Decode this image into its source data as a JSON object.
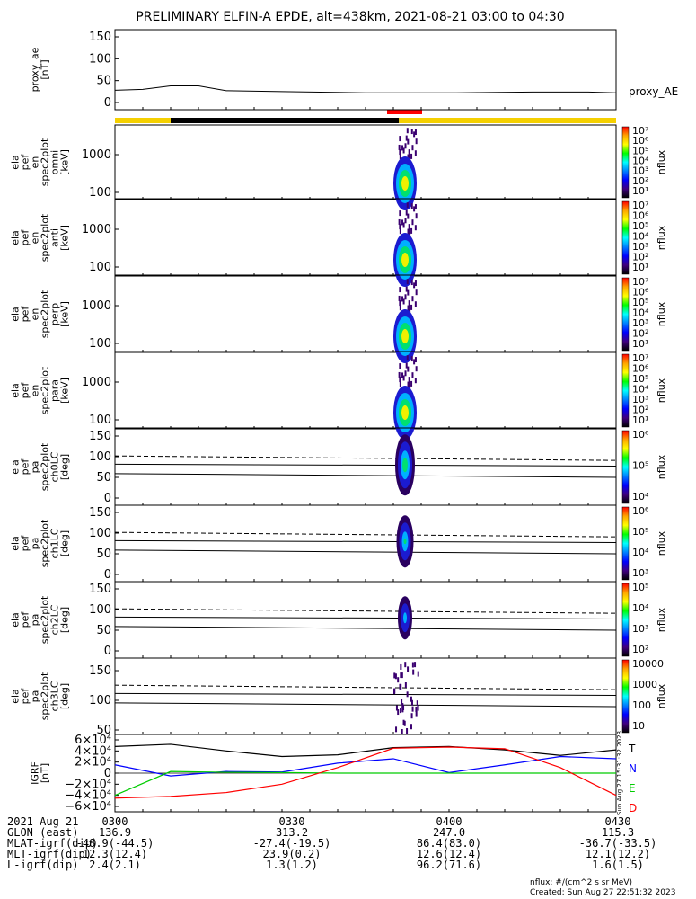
{
  "title": "PRELIMINARY ELFIN-A EPDE, alt=438km, 2021-08-21 03:00 to 04:30",
  "panels": [
    {
      "id": "ae",
      "ylabel": [
        "proxy_ae",
        "[nT]"
      ],
      "side_label": "proxy_AE",
      "yticks": [
        "150",
        "100",
        "50",
        "0"
      ]
    },
    {
      "id": "omni",
      "ylabel": [
        "ela",
        "pef",
        "en",
        "spec2plot",
        "omni",
        "[keV]"
      ],
      "yticks": [
        "1000",
        "100"
      ],
      "cbar_label": "nflux"
    },
    {
      "id": "anti",
      "ylabel": [
        "ela",
        "pef",
        "en",
        "spec2plot",
        "anti",
        "[keV]"
      ],
      "yticks": [
        "1000",
        "100"
      ],
      "cbar_label": "nflux"
    },
    {
      "id": "perp",
      "ylabel": [
        "ela",
        "pef",
        "en",
        "spec2plot",
        "perp",
        "[keV]"
      ],
      "yticks": [
        "1000",
        "100"
      ],
      "cbar_label": "nflux"
    },
    {
      "id": "para",
      "ylabel": [
        "ela",
        "pef",
        "en",
        "spec2plot",
        "para",
        "[keV]"
      ],
      "yticks": [
        "1000",
        "100"
      ],
      "cbar_label": "nflux"
    },
    {
      "id": "ch0",
      "ylabel": [
        "ela",
        "pef",
        "pa",
        "spec2plot",
        "ch0LC",
        "[deg]"
      ],
      "yticks": [
        "150",
        "100",
        "50",
        "0"
      ],
      "cbar_label": "nflux"
    },
    {
      "id": "ch1",
      "ylabel": [
        "ela",
        "pef",
        "pa",
        "spec2plot",
        "ch1LC",
        "[deg]"
      ],
      "yticks": [
        "150",
        "100",
        "50",
        "0"
      ],
      "cbar_label": "nflux"
    },
    {
      "id": "ch2",
      "ylabel": [
        "ela",
        "pef",
        "pa",
        "spec2plot",
        "ch2LC",
        "[deg]"
      ],
      "yticks": [
        "150",
        "100",
        "50",
        "0"
      ],
      "cbar_label": "nflux"
    },
    {
      "id": "ch3",
      "ylabel": [
        "ela",
        "pef",
        "pa",
        "spec2plot",
        "ch3LC",
        "[deg]"
      ],
      "yticks": [
        "150",
        "100",
        "50"
      ],
      "cbar_label": "nflux"
    },
    {
      "id": "igrf",
      "ylabel": [
        "IGRF",
        "[nT]"
      ],
      "yticks": [
        "6×10⁴",
        "4×10⁴",
        "2×10⁴",
        "0",
        "−2×10⁴",
        "−4×10⁴",
        "−6×10⁴"
      ]
    }
  ],
  "colorbars": [
    {
      "labels": [
        "10⁷",
        "10⁶",
        "10⁵",
        "10⁴",
        "10³",
        "10²",
        "10¹"
      ]
    },
    {
      "labels": [
        "10⁷",
        "10⁶",
        "10⁵",
        "10⁴",
        "10³",
        "10²",
        "10¹"
      ]
    },
    {
      "labels": [
        "10⁷",
        "10⁶",
        "10⁵",
        "10⁴",
        "10³",
        "10²",
        "10¹"
      ]
    },
    {
      "labels": [
        "10⁷",
        "10⁶",
        "10⁵",
        "10⁴",
        "10³",
        "10²",
        "10¹"
      ]
    },
    {
      "labels": [
        "10⁶",
        "10⁵",
        "10⁴"
      ]
    },
    {
      "labels": [
        "10⁶",
        "10⁵",
        "10⁴",
        "10³"
      ]
    },
    {
      "labels": [
        "10⁵",
        "10⁴",
        "10³",
        "10²"
      ]
    },
    {
      "labels": [
        "10000",
        "1000",
        "100",
        "10"
      ]
    }
  ],
  "igrf_legend": [
    {
      "label": "T",
      "color": "#000000"
    },
    {
      "label": "N",
      "color": "#0000ff"
    },
    {
      "label": "E",
      "color": "#00cc00"
    },
    {
      "label": "D",
      "color": "#ff0000"
    }
  ],
  "created_vertical": "Sun Aug 27 15:31:32 2023",
  "chart_data": [
    {
      "type": "line",
      "panel": "proxy_ae",
      "xlabel": "",
      "ylabel": "proxy_ae [nT]",
      "ylim": [
        0,
        150
      ],
      "x": [
        "03:00",
        "03:05",
        "03:10",
        "03:15",
        "03:20",
        "03:30",
        "03:45",
        "04:00",
        "04:15",
        "04:25",
        "04:30"
      ],
      "series": [
        {
          "name": "proxy_AE",
          "values": [
            28,
            30,
            38,
            38,
            27,
            25,
            22,
            22,
            24,
            24,
            22
          ]
        }
      ]
    },
    {
      "type": "heatmap",
      "panel": "ela_pef_en_spec2plot (omni/anti/perp/para)",
      "ylabel": "[keV]",
      "y_scale": "log",
      "yticks": [
        100,
        1000
      ],
      "note_free": true,
      "time_window": [
        "03:51",
        "03:53"
      ],
      "peak_energy_keV": [
        60,
        200
      ],
      "cbar_range": [
        "10¹",
        "10⁷"
      ]
    },
    {
      "type": "heatmap",
      "panel": "ela_pef_pa_spec2plot (ch0LC..ch3LC)",
      "ylabel": "[deg]",
      "ylim": [
        0,
        180
      ],
      "time_window": [
        "03:51",
        "03:53"
      ],
      "loss_cone_lines_deg": [
        65,
        90,
        112
      ]
    },
    {
      "type": "line",
      "panel": "IGRF",
      "ylabel": "IGRF [nT]",
      "ylim": [
        -60000,
        60000
      ],
      "x": [
        "03:00",
        "03:10",
        "03:20",
        "03:30",
        "03:40",
        "03:50",
        "04:00",
        "04:10",
        "04:20",
        "04:30"
      ],
      "series": [
        {
          "name": "T",
          "values": [
            48000,
            52000,
            40000,
            30000,
            33000,
            46000,
            48000,
            42000,
            32000,
            42000
          ]
        },
        {
          "name": "N",
          "values": [
            15000,
            -5000,
            3000,
            2000,
            18000,
            26000,
            1000,
            15000,
            30000,
            26000
          ]
        },
        {
          "name": "E",
          "values": [
            -40000,
            3000,
            1500,
            1000,
            0,
            0,
            0,
            0,
            0,
            0
          ]
        },
        {
          "name": "D",
          "values": [
            -45000,
            -42000,
            -35000,
            -20000,
            10000,
            45000,
            47000,
            44000,
            10000,
            -40000
          ]
        }
      ]
    },
    {
      "type": "bar",
      "panel": "region-bar",
      "x": [
        "03:00",
        "03:10",
        "03:30",
        "03:51",
        "04:30"
      ],
      "segments": [
        "yellow",
        "black",
        "black",
        "yellow"
      ]
    }
  ],
  "footer": {
    "rows": [
      {
        "label": "2021 Aug 21",
        "values": [
          "0300",
          "0330",
          "0400",
          "0430"
        ]
      },
      {
        "label": "GLON (east)",
        "values": [
          "136.9",
          "313.2",
          "247.0",
          "115.3"
        ]
      },
      {
        "label": "MLAT-igrf(dip)",
        "values": [
          "-48.9(-44.5)",
          "-27.4(-19.5)",
          "86.4(83.0)",
          "-36.7(-33.5)"
        ]
      },
      {
        "label": "MLT-igrf(dip)",
        "values": [
          "12.3(12.4)",
          "23.9(0.2)",
          "12.6(12.4)",
          "12.1(12.2)"
        ]
      },
      {
        "label": "L-igrf(dip)",
        "values": [
          "2.4(2.1)",
          "1.3(1.2)",
          "96.2(71.6)",
          "1.6(1.5)"
        ]
      }
    ],
    "units_note": "nflux: #/(cm^2 s sr MeV)",
    "created": "Created: Sun Aug 27 22:51:32 2023"
  }
}
